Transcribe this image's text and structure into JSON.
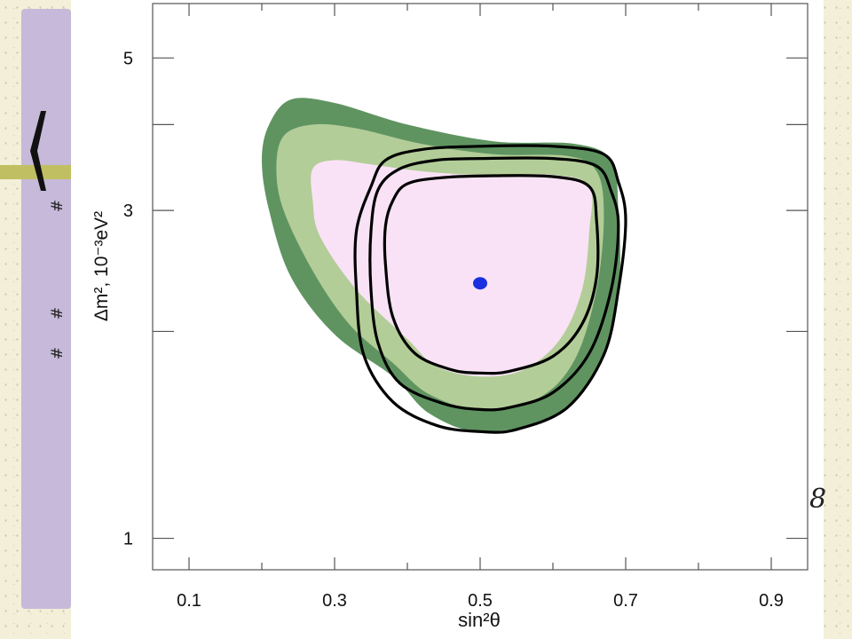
{
  "chart_data": {
    "type": "contour",
    "xlabel": "sin²θ",
    "ylabel": "Δm², 10⁻³eV²",
    "xlim": [
      0.05,
      0.95
    ],
    "ylim": [
      0.9,
      6.0
    ],
    "y_scale": "log",
    "x_ticks": [
      {
        "value": 0.1,
        "label": "0.1"
      },
      {
        "value": 0.3,
        "label": "0.3"
      },
      {
        "value": 0.5,
        "label": "0.5"
      },
      {
        "value": 0.7,
        "label": "0.7"
      },
      {
        "value": 0.9,
        "label": "0.9"
      }
    ],
    "x_minor_ticks": [
      0.2,
      0.4,
      0.6,
      0.8
    ],
    "y_ticks": [
      {
        "value": 1,
        "label": "1"
      },
      {
        "value": 3,
        "label": "3"
      },
      {
        "value": 5,
        "label": "5"
      }
    ],
    "y_minor_ticks": [
      2,
      4
    ],
    "grid": false,
    "best_fit": {
      "x": 0.5,
      "y": 2.35,
      "color": "#1a2fe0"
    },
    "filled_regions": [
      {
        "color": "#5f9461",
        "points": [
          [
            0.21,
            4.0
          ],
          [
            0.24,
            4.35
          ],
          [
            0.3,
            4.3
          ],
          [
            0.4,
            4.0
          ],
          [
            0.52,
            3.78
          ],
          [
            0.63,
            3.75
          ],
          [
            0.68,
            3.55
          ],
          [
            0.69,
            3.0
          ],
          [
            0.69,
            2.3
          ],
          [
            0.66,
            1.75
          ],
          [
            0.6,
            1.5
          ],
          [
            0.5,
            1.43
          ],
          [
            0.43,
            1.52
          ],
          [
            0.38,
            1.72
          ],
          [
            0.3,
            1.98
          ],
          [
            0.24,
            2.4
          ],
          [
            0.21,
            3.0
          ],
          [
            0.2,
            3.55
          ]
        ]
      },
      {
        "color": "#b3cd98",
        "points": [
          [
            0.23,
            3.85
          ],
          [
            0.27,
            4.0
          ],
          [
            0.33,
            3.95
          ],
          [
            0.42,
            3.75
          ],
          [
            0.52,
            3.62
          ],
          [
            0.62,
            3.6
          ],
          [
            0.66,
            3.42
          ],
          [
            0.67,
            2.95
          ],
          [
            0.66,
            2.3
          ],
          [
            0.63,
            1.82
          ],
          [
            0.58,
            1.6
          ],
          [
            0.5,
            1.54
          ],
          [
            0.43,
            1.62
          ],
          [
            0.38,
            1.8
          ],
          [
            0.32,
            2.05
          ],
          [
            0.27,
            2.45
          ],
          [
            0.23,
            3.0
          ],
          [
            0.22,
            3.45
          ]
        ]
      },
      {
        "color": "#f9e2f6",
        "points": [
          [
            0.27,
            3.45
          ],
          [
            0.3,
            3.55
          ],
          [
            0.35,
            3.5
          ],
          [
            0.42,
            3.42
          ],
          [
            0.5,
            3.38
          ],
          [
            0.6,
            3.38
          ],
          [
            0.65,
            3.25
          ],
          [
            0.65,
            2.8
          ],
          [
            0.64,
            2.3
          ],
          [
            0.61,
            1.95
          ],
          [
            0.56,
            1.76
          ],
          [
            0.5,
            1.72
          ],
          [
            0.44,
            1.78
          ],
          [
            0.4,
            1.95
          ],
          [
            0.33,
            2.3
          ],
          [
            0.28,
            2.75
          ],
          [
            0.27,
            3.1
          ]
        ]
      }
    ],
    "contour_lines": [
      {
        "color": "#000000",
        "points": [
          [
            0.35,
            3.25
          ],
          [
            0.37,
            3.55
          ],
          [
            0.42,
            3.68
          ],
          [
            0.5,
            3.72
          ],
          [
            0.6,
            3.72
          ],
          [
            0.67,
            3.62
          ],
          [
            0.69,
            3.3
          ],
          [
            0.7,
            2.9
          ],
          [
            0.69,
            2.3
          ],
          [
            0.67,
            1.85
          ],
          [
            0.62,
            1.55
          ],
          [
            0.55,
            1.44
          ],
          [
            0.5,
            1.43
          ],
          [
            0.44,
            1.46
          ],
          [
            0.38,
            1.58
          ],
          [
            0.34,
            1.85
          ],
          [
            0.33,
            2.3
          ],
          [
            0.33,
            2.8
          ]
        ]
      },
      {
        "color": "#000000",
        "points": [
          [
            0.36,
            3.22
          ],
          [
            0.39,
            3.45
          ],
          [
            0.44,
            3.55
          ],
          [
            0.5,
            3.57
          ],
          [
            0.6,
            3.57
          ],
          [
            0.66,
            3.48
          ],
          [
            0.68,
            3.2
          ],
          [
            0.69,
            2.85
          ],
          [
            0.68,
            2.3
          ],
          [
            0.65,
            1.86
          ],
          [
            0.6,
            1.63
          ],
          [
            0.54,
            1.55
          ],
          [
            0.5,
            1.54
          ],
          [
            0.45,
            1.57
          ],
          [
            0.39,
            1.68
          ],
          [
            0.36,
            1.92
          ],
          [
            0.35,
            2.3
          ],
          [
            0.35,
            2.8
          ]
        ]
      },
      {
        "color": "#000000",
        "points": [
          [
            0.38,
            3.1
          ],
          [
            0.4,
            3.28
          ],
          [
            0.45,
            3.35
          ],
          [
            0.52,
            3.37
          ],
          [
            0.6,
            3.36
          ],
          [
            0.65,
            3.25
          ],
          [
            0.66,
            2.9
          ],
          [
            0.66,
            2.4
          ],
          [
            0.64,
            2.05
          ],
          [
            0.6,
            1.84
          ],
          [
            0.54,
            1.75
          ],
          [
            0.5,
            1.74
          ],
          [
            0.46,
            1.76
          ],
          [
            0.41,
            1.86
          ],
          [
            0.38,
            2.1
          ],
          [
            0.37,
            2.5
          ],
          [
            0.37,
            2.85
          ]
        ]
      }
    ]
  },
  "decor": {
    "side_mark": "8",
    "hash_mark": "#"
  }
}
